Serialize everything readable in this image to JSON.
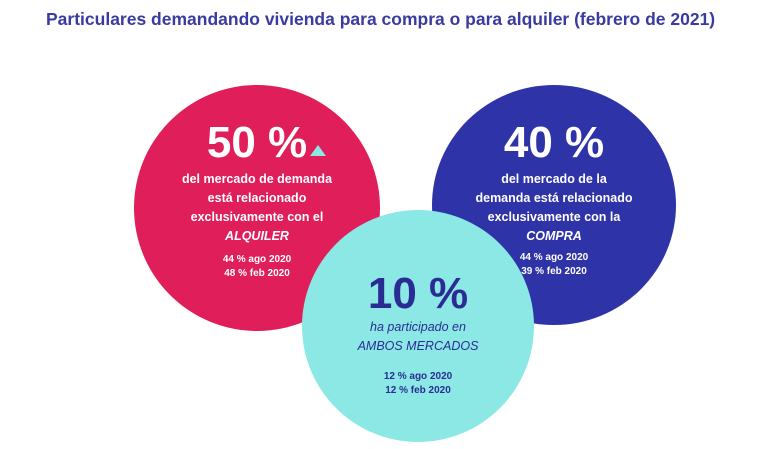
{
  "title": "Particulares demandando vivienda para compra o para alquiler (febrero de 2021)",
  "colors": {
    "rental": "#e01e5a",
    "purchase": "#2f33a8",
    "both": "#8be8e5",
    "title": "#3a3aa0"
  },
  "rental": {
    "percent": "50 %",
    "desc_lines": [
      "del mercado de demanda",
      "está relacionado",
      "exclusivamente con el"
    ],
    "market": "ALQUILER",
    "stats": [
      "44 % ago 2020",
      "48 % feb 2020"
    ],
    "indicator_icon": "triangle-up-icon"
  },
  "purchase": {
    "percent": "40 %",
    "desc_lines": [
      "del mercado de la",
      "demanda está relacionado",
      "exclusivamente con la"
    ],
    "market": "COMPRA",
    "stats": [
      "44 % ago 2020",
      "39 % feb 2020"
    ]
  },
  "both": {
    "percent": "10 %",
    "desc_lines": [
      "ha participado en"
    ],
    "market": "AMBOS MERCADOS",
    "stats": [
      "12 % ago 2020",
      "12 % feb 2020"
    ]
  }
}
